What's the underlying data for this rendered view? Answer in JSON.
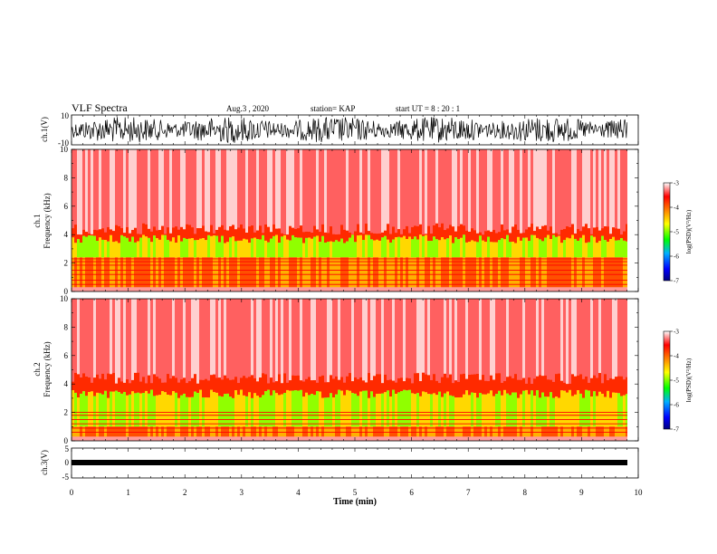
{
  "header": {
    "title": "VLF Spectra",
    "date": "Aug.3  , 2020",
    "station": "station= KAP",
    "start": "start  UT =   8 : 20 : 1"
  },
  "colors": {
    "scale": [
      "#000080",
      "#0000ff",
      "#00b0ff",
      "#00ff00",
      "#ffff00",
      "#ff8000",
      "#ff0000",
      "#ffffff"
    ]
  },
  "chart_data": [
    {
      "type": "line",
      "panel": "waveform-ch1",
      "ylabel": "ch.1(V)",
      "ylim": [
        -10,
        10
      ],
      "yticks": [
        "10",
        "-10"
      ],
      "xlim": [
        0,
        10
      ]
    },
    {
      "type": "heatmap",
      "panel": "spectrogram-ch1",
      "ylabel": "ch.1",
      "ylabel2": "Frequency  (kHz)",
      "ylim": [
        0,
        10
      ],
      "yticks": [
        "0",
        "2",
        "4",
        "6",
        "8",
        "10"
      ],
      "xlim": [
        0,
        10
      ],
      "colorbar": {
        "label": "log(PSD)(V²/Hz)",
        "range": [
          -7,
          -3
        ],
        "ticks": [
          "-3",
          "-4",
          "-5",
          "-6",
          "-7"
        ]
      }
    },
    {
      "type": "heatmap",
      "panel": "spectrogram-ch2",
      "ylabel": "ch.2",
      "ylabel2": "Frequency  (kHz)",
      "ylim": [
        0,
        10
      ],
      "yticks": [
        "0",
        "2",
        "4",
        "6",
        "8",
        "10"
      ],
      "xlim": [
        0,
        10
      ],
      "colorbar": {
        "label": "log(PSD)(V²/Hz)",
        "range": [
          -7,
          -3
        ],
        "ticks": [
          "-3",
          "-4",
          "-5",
          "-6",
          "-7"
        ]
      }
    },
    {
      "type": "line",
      "panel": "waveform-ch3",
      "ylabel": "ch.3(V)",
      "ylim": [
        -5,
        5
      ],
      "yticks": [
        "5",
        "0",
        "-5"
      ],
      "xlim": [
        0,
        10
      ],
      "xlabel": "Time  (min)",
      "xticks": [
        "0",
        "1",
        "2",
        "3",
        "4",
        "5",
        "6",
        "7",
        "8",
        "9",
        "10"
      ]
    }
  ]
}
